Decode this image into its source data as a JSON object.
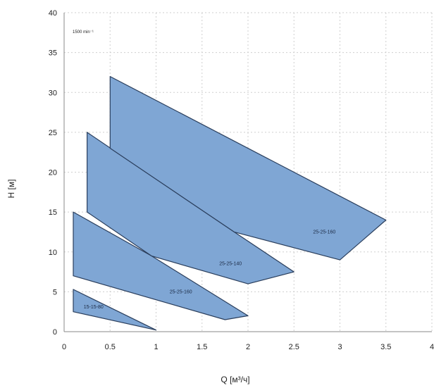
{
  "chart_data": {
    "type": "area",
    "xlabel": "Q [м³/ч]",
    "ylabel": "H [м]",
    "annotation": "1500 min⁻¹",
    "xlim": [
      0,
      4
    ],
    "ylim": [
      0,
      40
    ],
    "xticks": [
      "0",
      "0.5",
      "1",
      "1.5",
      "2",
      "2.5",
      "3",
      "3.5",
      "4"
    ],
    "yticks": [
      "0",
      "5",
      "10",
      "15",
      "20",
      "25",
      "30",
      "35",
      "40"
    ],
    "grid": true,
    "fill_color": "#7fa6d4",
    "edge_color": "#2a3e5c",
    "series": [
      {
        "name": "15-15-80",
        "points": [
          [
            0.1,
            5.3
          ],
          [
            1.0,
            0.2
          ],
          [
            0.1,
            2.5
          ]
        ],
        "label_at": [
          0.32,
          3.1
        ]
      },
      {
        "name": "25-25-160",
        "points": [
          [
            0.1,
            15.0
          ],
          [
            0.95,
            9.5
          ],
          [
            2.0,
            2.0
          ],
          [
            1.75,
            1.5
          ],
          [
            0.1,
            7.0
          ]
        ],
        "label_at": [
          1.27,
          5.0
        ]
      },
      {
        "name": "25-25-140",
        "points": [
          [
            0.25,
            25.0
          ],
          [
            1.85,
            12.5
          ],
          [
            2.5,
            7.5
          ],
          [
            2.0,
            6.0
          ],
          [
            0.95,
            9.5
          ],
          [
            0.25,
            15.0
          ]
        ],
        "label_at": [
          1.81,
          8.5
        ]
      },
      {
        "name": "25-25-160",
        "points": [
          [
            0.5,
            32.0
          ],
          [
            3.5,
            14.0
          ],
          [
            3.0,
            9.0
          ],
          [
            1.85,
            12.5
          ],
          [
            0.5,
            23.0
          ]
        ],
        "label_at": [
          2.83,
          12.5
        ]
      }
    ]
  }
}
